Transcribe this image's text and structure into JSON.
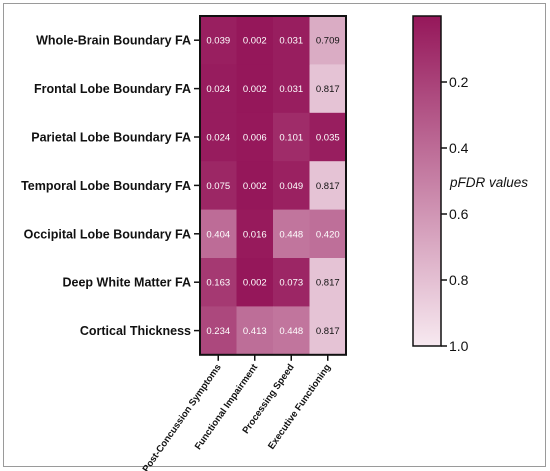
{
  "chart_data": {
    "type": "heatmap",
    "rows": [
      "Whole-Brain Boundary FA",
      "Frontal Lobe Boundary FA",
      "Parietal Lobe Boundary FA",
      "Temporal Lobe Boundary FA",
      "Occipital Lobe Boundary FA",
      "Deep White Matter FA",
      "Cortical Thickness"
    ],
    "columns": [
      "Post-Concussion Symptoms",
      "Functional Impairment",
      "Processing Speed",
      "Executive Functioning"
    ],
    "values": [
      [
        0.039,
        0.002,
        0.031,
        0.709
      ],
      [
        0.024,
        0.002,
        0.031,
        0.817
      ],
      [
        0.024,
        0.006,
        0.101,
        0.035
      ],
      [
        0.075,
        0.002,
        0.049,
        0.817
      ],
      [
        0.404,
        0.016,
        0.448,
        0.42
      ],
      [
        0.163,
        0.002,
        0.073,
        0.817
      ],
      [
        0.234,
        0.413,
        0.448,
        0.817
      ]
    ],
    "value_labels": [
      [
        "0.039",
        "0.002",
        "0.031",
        "0.709"
      ],
      [
        "0.024",
        "0.002",
        "0.031",
        "0.817"
      ],
      [
        "0.024",
        "0.006",
        "0.101",
        "0.035"
      ],
      [
        "0.075",
        "0.002",
        "0.049",
        "0.817"
      ],
      [
        "0.404",
        "0.016",
        "0.448",
        "0.420"
      ],
      [
        "0.163",
        "0.002",
        "0.073",
        "0.817"
      ],
      [
        "0.234",
        "0.413",
        "0.448",
        "0.817"
      ]
    ],
    "colorbar": {
      "title": "pFDR values",
      "range": [
        0.0,
        1.0
      ],
      "ticks": [
        0.2,
        0.4,
        0.6,
        0.8,
        1.0
      ],
      "tick_labels": [
        "0.2",
        "0.4",
        "0.6",
        "0.8",
        "1.0"
      ],
      "color_low_value": "#95175a",
      "color_high_value": "#f7e9f0"
    },
    "legend_placement": "right"
  }
}
